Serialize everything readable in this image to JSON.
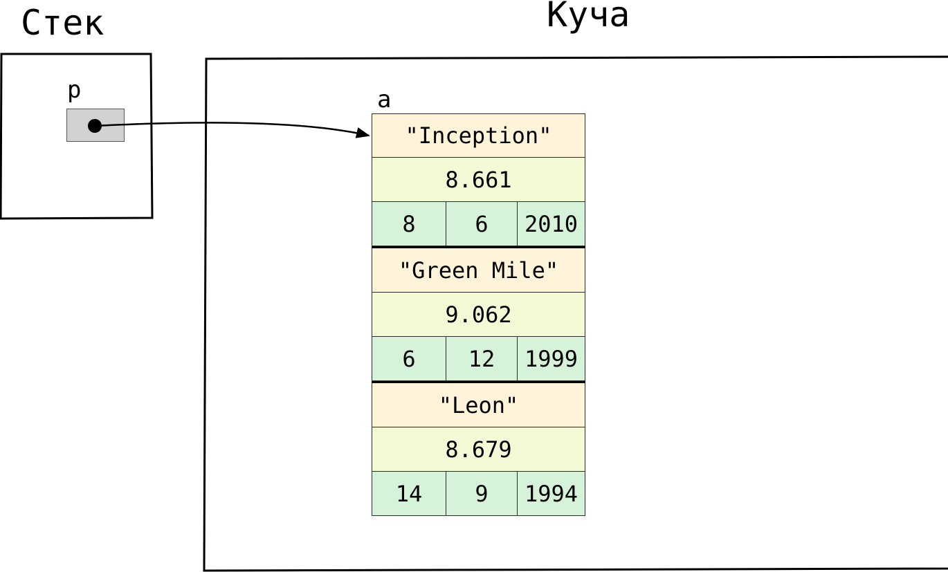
{
  "stack": {
    "title": "Стек",
    "variable": "p"
  },
  "heap": {
    "title": "Куча",
    "array_name": "a",
    "records": [
      {
        "title": "\"Inception\"",
        "rating": "8.661",
        "day": "8",
        "month": "6",
        "year": "2010"
      },
      {
        "title": "\"Green Mile\"",
        "rating": "9.062",
        "day": "6",
        "month": "12",
        "year": "1999"
      },
      {
        "title": "\"Leon\"",
        "rating": "8.679",
        "day": "14",
        "month": "9",
        "year": "1994"
      }
    ]
  },
  "colors": {
    "title_cell": "#fff4d9",
    "rating_cell": "#f5fad6",
    "date_cell": "#d6f2d8",
    "pointer_cell": "#d2d2d2"
  }
}
